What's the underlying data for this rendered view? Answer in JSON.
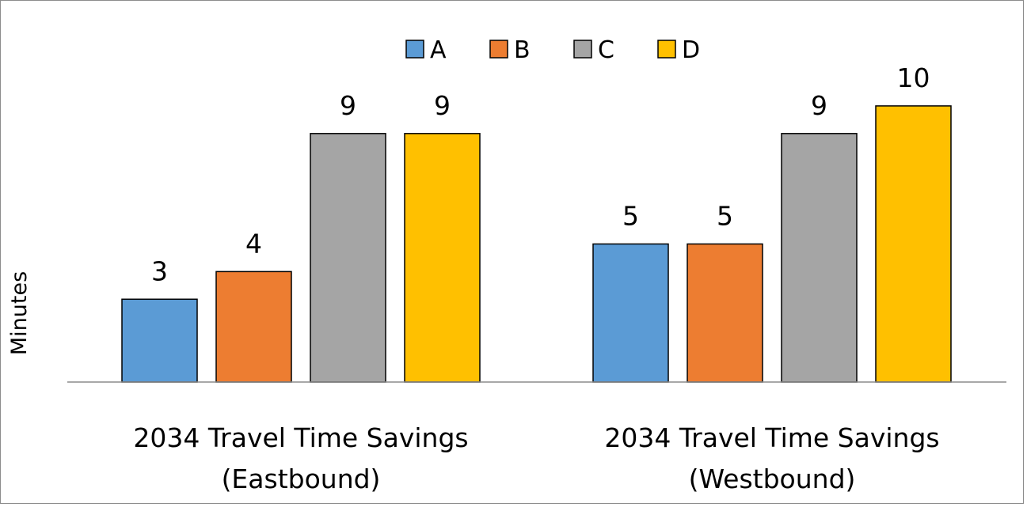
{
  "chart_data": {
    "type": "bar",
    "title": "",
    "xlabel": "",
    "ylabel": "Minutes",
    "ylim": [
      0,
      11
    ],
    "grid": false,
    "legend_position": "top-center",
    "categories": [
      [
        "2034 Travel Time Savings",
        "(Eastbound)"
      ],
      [
        "2034 Travel Time Savings",
        "(Westbound)"
      ]
    ],
    "series": [
      {
        "name": "A",
        "color": "#5B9BD5",
        "values": [
          3,
          5
        ]
      },
      {
        "name": "B",
        "color": "#ED7D31",
        "values": [
          4,
          5
        ]
      },
      {
        "name": "C",
        "color": "#A5A5A5",
        "values": [
          9,
          9
        ]
      },
      {
        "name": "D",
        "color": "#FFC000",
        "values": [
          9,
          10
        ]
      }
    ]
  }
}
